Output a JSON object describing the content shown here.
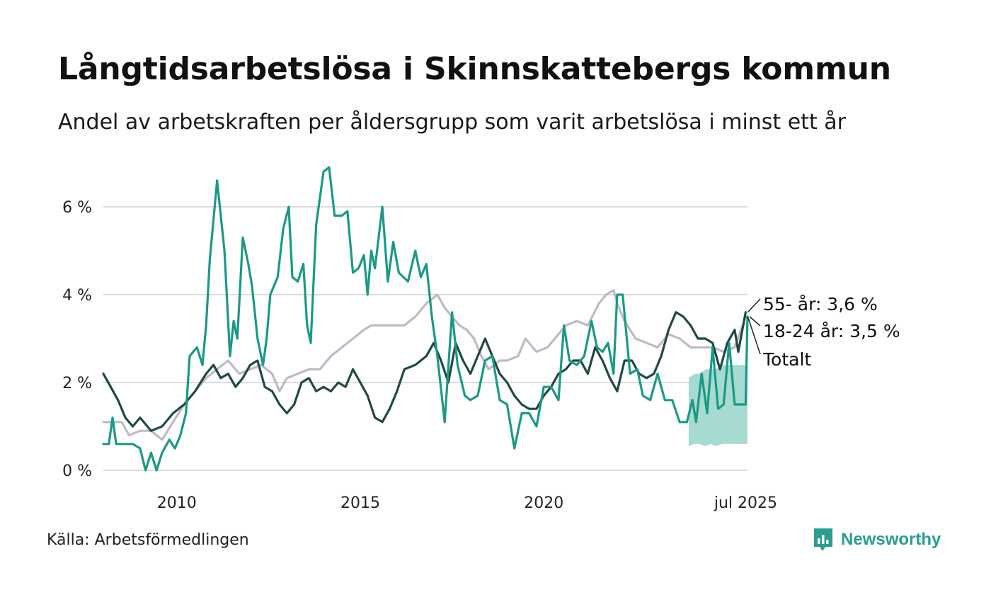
{
  "title": "Långtidsarbetslösa i Skinnskattebergs kommun",
  "subtitle": "Andel av arbetskraften per åldersgrupp som varit arbetslösa i minst ett år",
  "source": "Källa: Arbetsförmedlingen",
  "brand": {
    "name": "Newsworthy",
    "icon": "bar-chart-bubble-icon"
  },
  "colors": {
    "total": "#bdbac8",
    "age_55": "#1f4a43",
    "age_18_24": "#1a9a86",
    "band": "#a2d8cf",
    "grid": "#dcdcdc"
  },
  "chart_data": {
    "type": "line",
    "ylim": [
      0,
      7
    ],
    "xlim": [
      2008.0,
      2025.55
    ],
    "y_ticks": [
      {
        "value": 0,
        "label": "0 %"
      },
      {
        "value": 2,
        "label": "2 %"
      },
      {
        "value": 4,
        "label": "4 %"
      },
      {
        "value": 6,
        "label": "6 %"
      }
    ],
    "x_ticks": [
      {
        "value": 2010,
        "label": "2010"
      },
      {
        "value": 2015,
        "label": "2015"
      },
      {
        "value": 2020,
        "label": "2020"
      },
      {
        "value": 2025.5,
        "label": "jul 2025"
      }
    ],
    "grid": true,
    "series": [
      {
        "name": "Totalt",
        "label": "Totalt",
        "color_key": "total",
        "points": [
          [
            2008.0,
            1.1
          ],
          [
            2008.5,
            1.1
          ],
          [
            2008.7,
            0.8
          ],
          [
            2009.0,
            0.9
          ],
          [
            2009.3,
            0.9
          ],
          [
            2009.6,
            0.7
          ],
          [
            2009.9,
            1.1
          ],
          [
            2010.2,
            1.5
          ],
          [
            2010.5,
            1.8
          ],
          [
            2010.8,
            2.1
          ],
          [
            2011.1,
            2.3
          ],
          [
            2011.4,
            2.5
          ],
          [
            2011.7,
            2.2
          ],
          [
            2012.0,
            2.3
          ],
          [
            2012.3,
            2.4
          ],
          [
            2012.6,
            2.2
          ],
          [
            2012.8,
            1.8
          ],
          [
            2013.0,
            2.1
          ],
          [
            2013.3,
            2.2
          ],
          [
            2013.6,
            2.3
          ],
          [
            2013.9,
            2.3
          ],
          [
            2014.2,
            2.6
          ],
          [
            2014.5,
            2.8
          ],
          [
            2014.8,
            3.0
          ],
          [
            2015.1,
            3.2
          ],
          [
            2015.3,
            3.3
          ],
          [
            2015.6,
            3.3
          ],
          [
            2015.9,
            3.3
          ],
          [
            2016.2,
            3.3
          ],
          [
            2016.5,
            3.5
          ],
          [
            2016.8,
            3.8
          ],
          [
            2017.1,
            4.0
          ],
          [
            2017.3,
            3.7
          ],
          [
            2017.5,
            3.5
          ],
          [
            2017.7,
            3.3
          ],
          [
            2017.9,
            3.2
          ],
          [
            2018.1,
            3.0
          ],
          [
            2018.3,
            2.6
          ],
          [
            2018.5,
            2.3
          ],
          [
            2018.8,
            2.5
          ],
          [
            2019.0,
            2.5
          ],
          [
            2019.3,
            2.6
          ],
          [
            2019.5,
            3.0
          ],
          [
            2019.8,
            2.7
          ],
          [
            2020.1,
            2.8
          ],
          [
            2020.3,
            3.0
          ],
          [
            2020.6,
            3.3
          ],
          [
            2020.9,
            3.4
          ],
          [
            2021.2,
            3.3
          ],
          [
            2021.5,
            3.8
          ],
          [
            2021.7,
            4.0
          ],
          [
            2021.9,
            4.1
          ],
          [
            2022.0,
            3.8
          ],
          [
            2022.2,
            3.4
          ],
          [
            2022.5,
            3.0
          ],
          [
            2022.8,
            2.9
          ],
          [
            2023.1,
            2.8
          ],
          [
            2023.4,
            3.1
          ],
          [
            2023.7,
            3.0
          ],
          [
            2024.0,
            2.8
          ],
          [
            2024.3,
            2.8
          ],
          [
            2024.6,
            2.8
          ],
          [
            2024.9,
            2.7
          ],
          [
            2025.2,
            2.8
          ],
          [
            2025.5,
            3.5
          ]
        ]
      },
      {
        "name": "55- år",
        "label": "55- år: 3,6 %",
        "color_key": "age_55",
        "points": [
          [
            2008.0,
            2.2
          ],
          [
            2008.2,
            1.9
          ],
          [
            2008.4,
            1.6
          ],
          [
            2008.6,
            1.2
          ],
          [
            2008.8,
            1.0
          ],
          [
            2009.0,
            1.2
          ],
          [
            2009.3,
            0.9
          ],
          [
            2009.6,
            1.0
          ],
          [
            2009.9,
            1.3
          ],
          [
            2010.2,
            1.5
          ],
          [
            2010.5,
            1.8
          ],
          [
            2010.8,
            2.2
          ],
          [
            2011.0,
            2.4
          ],
          [
            2011.2,
            2.1
          ],
          [
            2011.4,
            2.2
          ],
          [
            2011.6,
            1.9
          ],
          [
            2011.8,
            2.1
          ],
          [
            2012.0,
            2.4
          ],
          [
            2012.2,
            2.5
          ],
          [
            2012.4,
            1.9
          ],
          [
            2012.6,
            1.8
          ],
          [
            2012.8,
            1.5
          ],
          [
            2013.0,
            1.3
          ],
          [
            2013.2,
            1.5
          ],
          [
            2013.4,
            2.0
          ],
          [
            2013.6,
            2.1
          ],
          [
            2013.8,
            1.8
          ],
          [
            2014.0,
            1.9
          ],
          [
            2014.2,
            1.8
          ],
          [
            2014.4,
            2.0
          ],
          [
            2014.6,
            1.9
          ],
          [
            2014.8,
            2.3
          ],
          [
            2015.0,
            2.0
          ],
          [
            2015.2,
            1.7
          ],
          [
            2015.4,
            1.2
          ],
          [
            2015.6,
            1.1
          ],
          [
            2015.8,
            1.4
          ],
          [
            2016.0,
            1.8
          ],
          [
            2016.2,
            2.3
          ],
          [
            2016.5,
            2.4
          ],
          [
            2016.8,
            2.6
          ],
          [
            2017.0,
            2.9
          ],
          [
            2017.2,
            2.5
          ],
          [
            2017.4,
            2.0
          ],
          [
            2017.6,
            2.9
          ],
          [
            2017.8,
            2.5
          ],
          [
            2018.0,
            2.2
          ],
          [
            2018.2,
            2.6
          ],
          [
            2018.4,
            3.0
          ],
          [
            2018.6,
            2.6
          ],
          [
            2018.8,
            2.2
          ],
          [
            2019.0,
            2.0
          ],
          [
            2019.2,
            1.7
          ],
          [
            2019.4,
            1.5
          ],
          [
            2019.6,
            1.4
          ],
          [
            2019.8,
            1.4
          ],
          [
            2020.0,
            1.7
          ],
          [
            2020.2,
            1.9
          ],
          [
            2020.4,
            2.2
          ],
          [
            2020.6,
            2.3
          ],
          [
            2020.8,
            2.5
          ],
          [
            2021.0,
            2.5
          ],
          [
            2021.2,
            2.2
          ],
          [
            2021.4,
            2.8
          ],
          [
            2021.6,
            2.5
          ],
          [
            2021.8,
            2.1
          ],
          [
            2022.0,
            1.8
          ],
          [
            2022.2,
            2.5
          ],
          [
            2022.4,
            2.5
          ],
          [
            2022.6,
            2.2
          ],
          [
            2022.8,
            2.1
          ],
          [
            2023.0,
            2.2
          ],
          [
            2023.2,
            2.6
          ],
          [
            2023.4,
            3.2
          ],
          [
            2023.6,
            3.6
          ],
          [
            2023.8,
            3.5
          ],
          [
            2024.0,
            3.3
          ],
          [
            2024.2,
            3.0
          ],
          [
            2024.4,
            3.0
          ],
          [
            2024.6,
            2.9
          ],
          [
            2024.8,
            2.3
          ],
          [
            2025.0,
            2.9
          ],
          [
            2025.2,
            3.2
          ],
          [
            2025.3,
            2.7
          ],
          [
            2025.5,
            3.6
          ]
        ]
      },
      {
        "name": "18-24 år",
        "label": "18-24 år: 3,5 %",
        "color_key": "age_18_24",
        "points": [
          [
            2008.0,
            0.6
          ],
          [
            2008.15,
            0.6
          ],
          [
            2008.25,
            1.2
          ],
          [
            2008.35,
            0.6
          ],
          [
            2008.8,
            0.6
          ],
          [
            2009.0,
            0.5
          ],
          [
            2009.15,
            0.0
          ],
          [
            2009.3,
            0.4
          ],
          [
            2009.45,
            0.0
          ],
          [
            2009.6,
            0.4
          ],
          [
            2009.8,
            0.7
          ],
          [
            2009.95,
            0.5
          ],
          [
            2010.1,
            0.8
          ],
          [
            2010.25,
            1.3
          ],
          [
            2010.35,
            2.6
          ],
          [
            2010.55,
            2.8
          ],
          [
            2010.7,
            2.4
          ],
          [
            2010.8,
            3.3
          ],
          [
            2010.9,
            4.8
          ],
          [
            2011.1,
            6.6
          ],
          [
            2011.3,
            5.0
          ],
          [
            2011.45,
            2.6
          ],
          [
            2011.55,
            3.4
          ],
          [
            2011.65,
            3.0
          ],
          [
            2011.8,
            5.3
          ],
          [
            2011.95,
            4.7
          ],
          [
            2012.05,
            4.2
          ],
          [
            2012.2,
            3.0
          ],
          [
            2012.35,
            2.4
          ],
          [
            2012.45,
            3.0
          ],
          [
            2012.55,
            4.0
          ],
          [
            2012.75,
            4.4
          ],
          [
            2012.9,
            5.5
          ],
          [
            2013.05,
            6.0
          ],
          [
            2013.15,
            4.4
          ],
          [
            2013.3,
            4.3
          ],
          [
            2013.45,
            4.7
          ],
          [
            2013.55,
            3.3
          ],
          [
            2013.65,
            2.9
          ],
          [
            2013.8,
            5.6
          ],
          [
            2014.0,
            6.8
          ],
          [
            2014.15,
            6.9
          ],
          [
            2014.3,
            5.8
          ],
          [
            2014.5,
            5.8
          ],
          [
            2014.65,
            5.9
          ],
          [
            2014.8,
            4.5
          ],
          [
            2014.95,
            4.6
          ],
          [
            2015.1,
            4.9
          ],
          [
            2015.2,
            4.0
          ],
          [
            2015.3,
            5.0
          ],
          [
            2015.4,
            4.6
          ],
          [
            2015.6,
            6.0
          ],
          [
            2015.75,
            4.3
          ],
          [
            2015.9,
            5.2
          ],
          [
            2016.05,
            4.5
          ],
          [
            2016.3,
            4.3
          ],
          [
            2016.5,
            5.0
          ],
          [
            2016.65,
            4.4
          ],
          [
            2016.8,
            4.7
          ],
          [
            2016.95,
            3.5
          ],
          [
            2017.1,
            2.6
          ],
          [
            2017.3,
            1.1
          ],
          [
            2017.5,
            3.6
          ],
          [
            2017.65,
            2.4
          ],
          [
            2017.85,
            1.7
          ],
          [
            2018.0,
            1.6
          ],
          [
            2018.2,
            1.7
          ],
          [
            2018.4,
            2.5
          ],
          [
            2018.6,
            2.6
          ],
          [
            2018.8,
            1.6
          ],
          [
            2019.0,
            1.5
          ],
          [
            2019.2,
            0.5
          ],
          [
            2019.4,
            1.3
          ],
          [
            2019.6,
            1.3
          ],
          [
            2019.8,
            1.0
          ],
          [
            2020.0,
            1.9
          ],
          [
            2020.2,
            1.9
          ],
          [
            2020.4,
            1.6
          ],
          [
            2020.55,
            3.3
          ],
          [
            2020.7,
            2.5
          ],
          [
            2020.9,
            2.4
          ],
          [
            2021.1,
            2.6
          ],
          [
            2021.3,
            3.4
          ],
          [
            2021.45,
            2.8
          ],
          [
            2021.6,
            2.7
          ],
          [
            2021.75,
            2.9
          ],
          [
            2021.9,
            2.2
          ],
          [
            2022.0,
            4.0
          ],
          [
            2022.15,
            4.0
          ],
          [
            2022.35,
            2.2
          ],
          [
            2022.55,
            2.3
          ],
          [
            2022.7,
            1.7
          ],
          [
            2022.9,
            1.6
          ],
          [
            2023.1,
            2.2
          ],
          [
            2023.3,
            1.6
          ],
          [
            2023.5,
            1.6
          ],
          [
            2023.7,
            1.1
          ],
          [
            2023.9,
            1.1
          ],
          [
            2024.05,
            1.6
          ],
          [
            2024.15,
            1.1
          ],
          [
            2024.3,
            2.2
          ],
          [
            2024.45,
            1.3
          ],
          [
            2024.6,
            2.8
          ],
          [
            2024.75,
            1.4
          ],
          [
            2024.9,
            1.5
          ],
          [
            2025.05,
            2.9
          ],
          [
            2025.2,
            1.5
          ],
          [
            2025.5,
            1.5
          ],
          [
            2025.55,
            3.5
          ]
        ]
      }
    ],
    "uncertainty_band": {
      "series": "18-24 år",
      "x": [
        2023.95,
        2024.1,
        2024.25,
        2024.4,
        2024.55,
        2024.7,
        2024.85,
        2025.0,
        2025.15,
        2025.3,
        2025.45,
        2025.55
      ],
      "lower": [
        0.55,
        0.6,
        0.6,
        0.55,
        0.6,
        0.55,
        0.6,
        0.6,
        0.6,
        0.6,
        0.6,
        0.6
      ],
      "upper": [
        2.1,
        2.2,
        2.2,
        2.3,
        2.3,
        2.3,
        2.4,
        2.4,
        2.4,
        2.4,
        2.4,
        2.4
      ]
    }
  }
}
